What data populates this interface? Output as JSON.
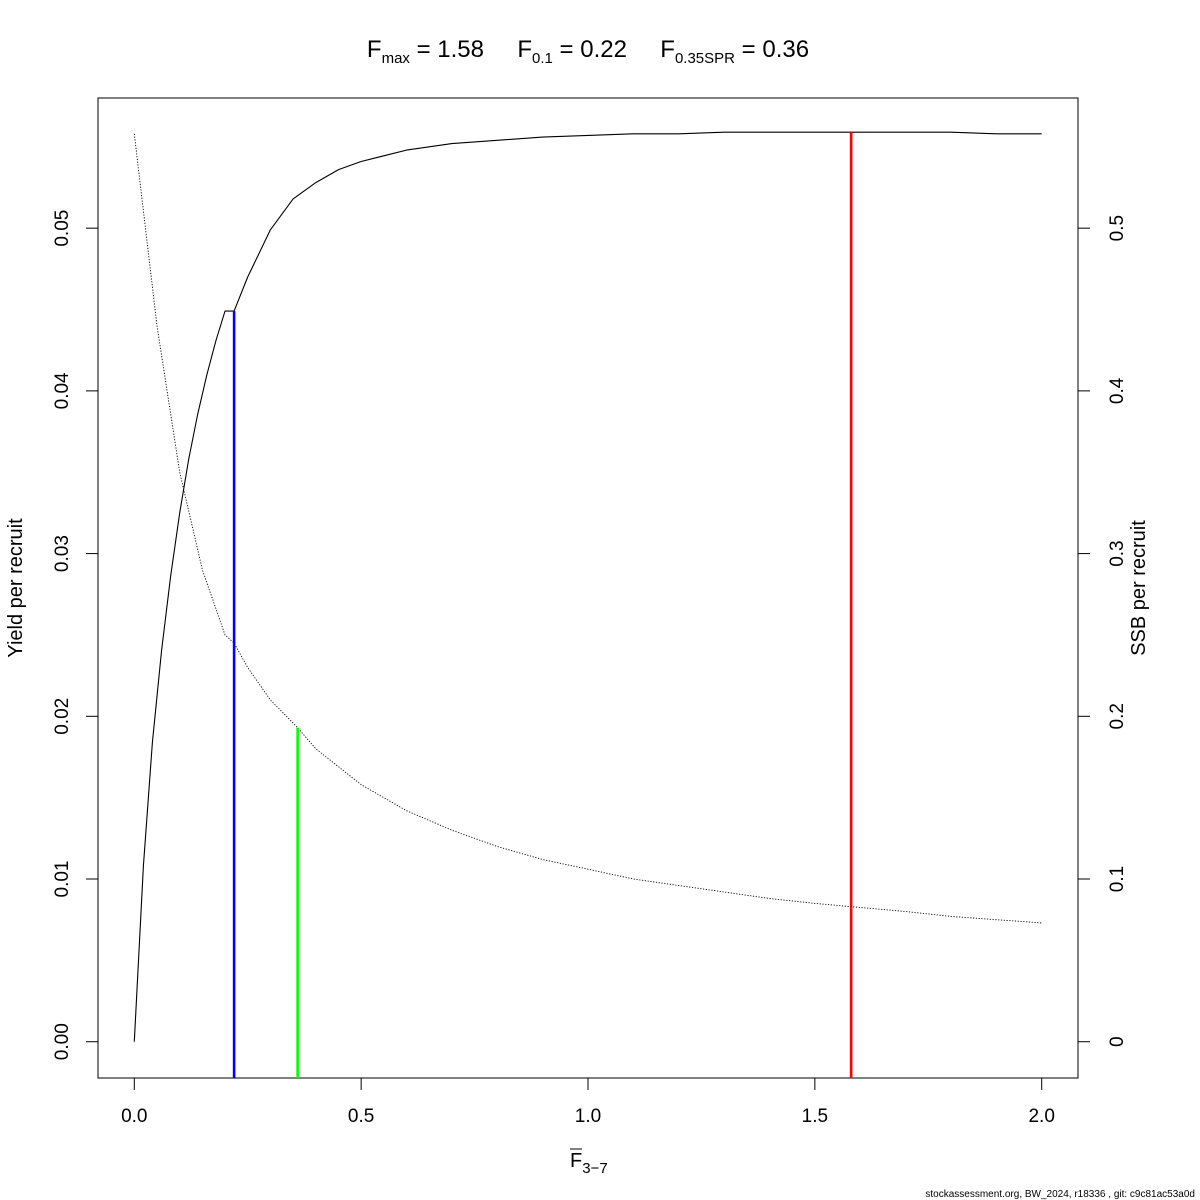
{
  "chart_data": {
    "type": "line",
    "title_parts": [
      {
        "main": "F",
        "sub": "max",
        "rest": " = 1.58"
      },
      {
        "main": "F",
        "sub": "0.1",
        "rest": " = 0.22"
      },
      {
        "main": "F",
        "sub": "0.35SPR",
        "rest": " = 0.36"
      }
    ],
    "xlabel": {
      "main": "F",
      "sub": "3−7"
    },
    "ylabel": "Yield per recruit",
    "y2label": "SSB per recruit",
    "xlim": [
      -0.08,
      2.08
    ],
    "ylim": [
      -0.00223,
      0.058
    ],
    "y2lim": [
      -0.0223,
      0.58
    ],
    "xticks": [
      0,
      0.5,
      1,
      1.5,
      2
    ],
    "xtick_labels": [
      "0.0",
      "0.5",
      "1.0",
      "1.5",
      "2.0"
    ],
    "yticks": [
      0,
      0.01,
      0.02,
      0.03,
      0.04,
      0.05
    ],
    "ytick_labels": [
      "0.00",
      "0.01",
      "0.02",
      "0.03",
      "0.04",
      "0.05"
    ],
    "y2ticks": [
      0,
      0.1,
      0.2,
      0.3,
      0.4,
      0.5
    ],
    "y2tick_labels": [
      "0",
      "0.1",
      "0.2",
      "0.3",
      "0.4",
      "0.5"
    ],
    "series": [
      {
        "axis": "left",
        "style": "solid",
        "color": "#000000",
        "x": [
          0,
          0.02,
          0.04,
          0.06,
          0.08,
          0.1,
          0.12,
          0.14,
          0.16,
          0.18,
          0.2,
          0.22,
          0.25,
          0.3,
          0.35,
          0.4,
          0.45,
          0.5,
          0.6,
          0.7,
          0.8,
          0.9,
          1.0,
          1.1,
          1.2,
          1.3,
          1.4,
          1.5,
          1.58,
          1.7,
          1.8,
          1.9,
          2.0
        ],
        "y": [
          0.0,
          0.0108,
          0.0184,
          0.024,
          0.0286,
          0.0325,
          0.0358,
          0.0386,
          0.041,
          0.0431,
          0.0449,
          0.0449,
          0.047,
          0.0499,
          0.0518,
          0.0528,
          0.0536,
          0.0541,
          0.0548,
          0.0552,
          0.0554,
          0.0556,
          0.0557,
          0.0558,
          0.0558,
          0.0559,
          0.0559,
          0.0559,
          0.0559,
          0.0559,
          0.0559,
          0.0558,
          0.0558
        ]
      },
      {
        "axis": "right",
        "style": "dotted",
        "color": "#000000",
        "x": [
          0,
          0.05,
          0.1,
          0.15,
          0.2,
          0.22,
          0.25,
          0.3,
          0.36,
          0.4,
          0.5,
          0.6,
          0.7,
          0.8,
          0.9,
          1.0,
          1.1,
          1.2,
          1.3,
          1.4,
          1.5,
          1.58,
          1.7,
          1.8,
          1.9,
          2.0
        ],
        "y": [
          0.558,
          0.44,
          0.35,
          0.29,
          0.25,
          0.245,
          0.23,
          0.21,
          0.193,
          0.18,
          0.158,
          0.142,
          0.13,
          0.12,
          0.112,
          0.106,
          0.1,
          0.096,
          0.092,
          0.088,
          0.085,
          0.083,
          0.08,
          0.077,
          0.075,
          0.073
        ]
      }
    ],
    "reference_lines": [
      {
        "x": 0.22,
        "y_top": 0.0449,
        "color": "#0000ff"
      },
      {
        "x": 0.36,
        "y_top": 0.0193,
        "color": "#00ff00"
      },
      {
        "x": 1.58,
        "y_top": 0.0559,
        "color": "#ff0000"
      }
    ]
  },
  "footer": "stockassessment.org, BW_2024, r18336 , git: c9c81ac53a0d"
}
